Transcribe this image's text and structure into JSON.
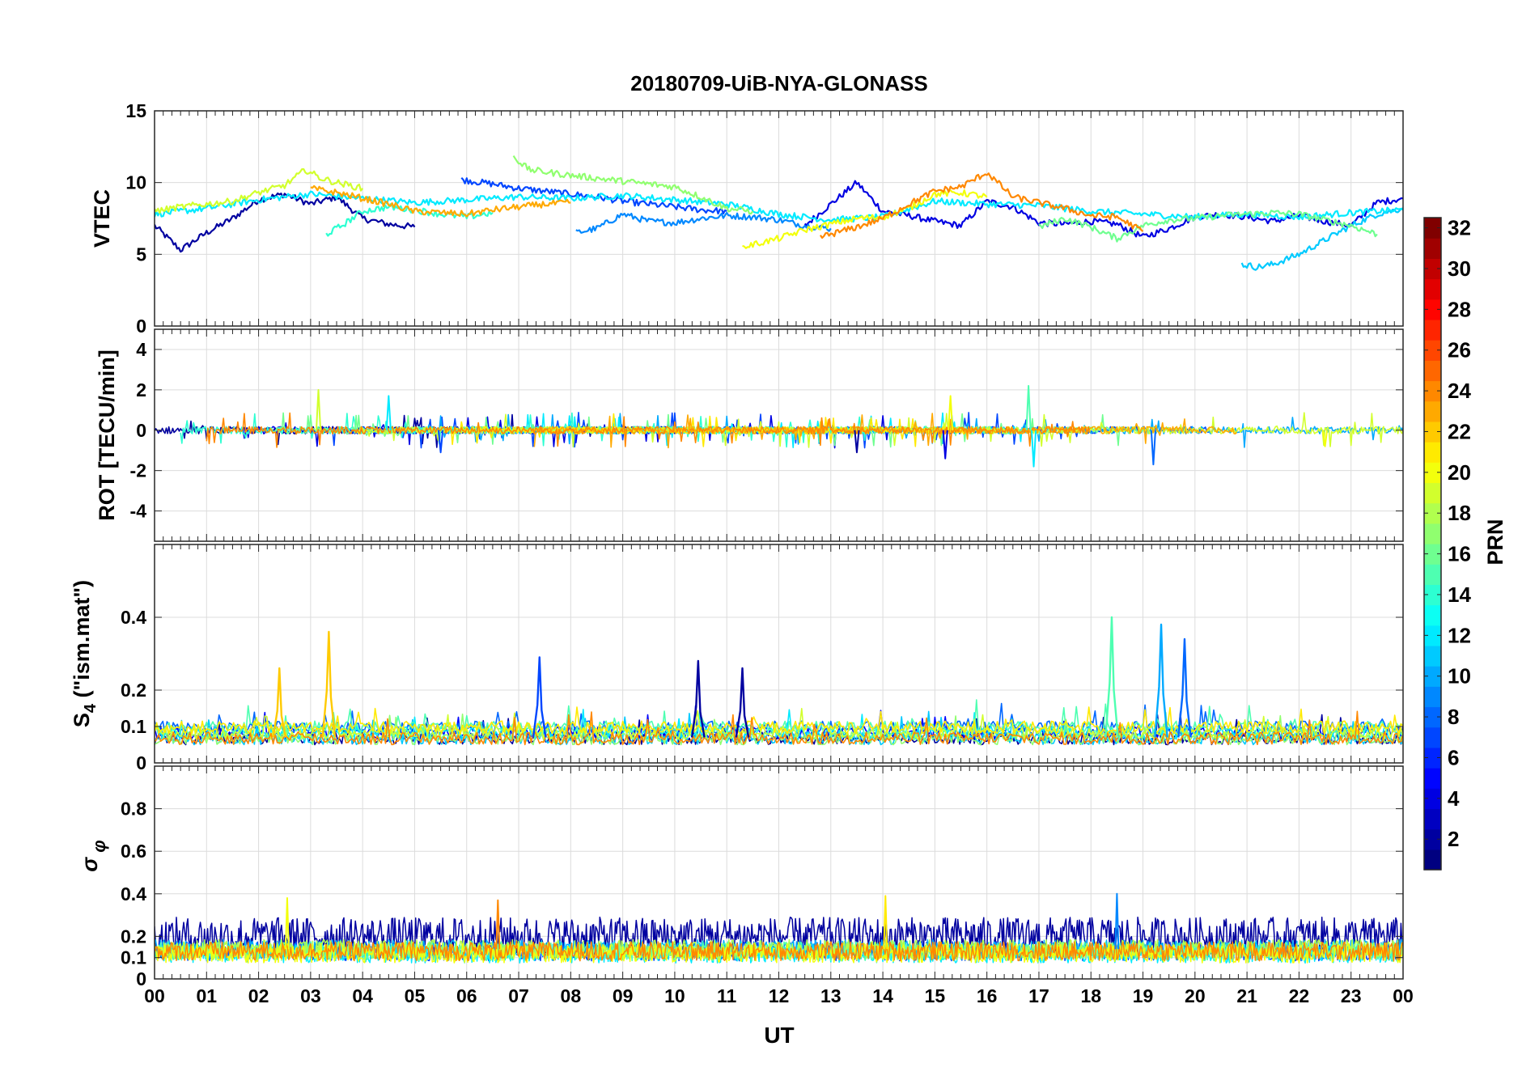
{
  "chart_data": {
    "type": "line",
    "title": "20180709-UiB-NYA-GLONASS",
    "xlabel": "UT",
    "x_tick_labels": [
      "00",
      "01",
      "02",
      "03",
      "04",
      "05",
      "06",
      "07",
      "08",
      "09",
      "10",
      "11",
      "12",
      "13",
      "14",
      "15",
      "16",
      "17",
      "18",
      "19",
      "20",
      "21",
      "22",
      "23",
      "00"
    ],
    "xlim": [
      0,
      24
    ],
    "grid": true,
    "colormap": "jet",
    "colorbar": {
      "label": "PRN",
      "range": [
        1,
        32
      ],
      "tick_labels": [
        "2",
        "4",
        "6",
        "8",
        "10",
        "12",
        "14",
        "16",
        "18",
        "20",
        "22",
        "24",
        "26",
        "28",
        "30",
        "32"
      ],
      "placement": "right"
    },
    "panels": [
      {
        "name": "vtec",
        "ylabel": "VTEC",
        "ylim": [
          0,
          15
        ],
        "y_tick_labels": [
          "0",
          "5",
          "10",
          "15"
        ],
        "series": [
          {
            "prn": 2,
            "x": [
              0.0,
              0.5,
              1.0,
              1.5,
              2.0,
              2.5,
              3.0,
              3.5,
              4.0,
              4.5,
              5.0
            ],
            "y": [
              7.0,
              5.3,
              6.5,
              7.5,
              8.8,
              9.2,
              8.5,
              9.0,
              7.5,
              7.1,
              6.9
            ]
          },
          {
            "prn": 4,
            "x": [
              12.5,
              13.0,
              13.5,
              14.0,
              14.5,
              15.0,
              15.5,
              16.0,
              16.5,
              17.0,
              17.5,
              18.0,
              18.5,
              19.0,
              19.5,
              20.0,
              20.5,
              21.0,
              21.5,
              22.0,
              22.5,
              23.0,
              23.5,
              24.0
            ],
            "y": [
              7.0,
              8.5,
              10.0,
              8.0,
              7.7,
              7.3,
              7.0,
              8.7,
              8.3,
              7.2,
              7.1,
              7.3,
              7.1,
              6.2,
              6.8,
              7.6,
              7.8,
              7.6,
              7.3,
              7.7,
              7.3,
              7.0,
              8.6,
              8.9
            ]
          },
          {
            "prn": 7,
            "x": [
              5.9,
              6.5,
              7.0,
              7.5,
              8.0,
              8.5,
              9.0,
              9.5,
              10.0,
              10.5,
              11.0
            ],
            "y": [
              10.2,
              9.9,
              9.6,
              9.4,
              9.2,
              9.0,
              8.7,
              8.5,
              8.3,
              8.1,
              8.0
            ]
          },
          {
            "prn": 9,
            "x": [
              8.1,
              8.5,
              9.0,
              9.5,
              10.0,
              10.5,
              11.0,
              11.5,
              12.0,
              12.5,
              13.0
            ],
            "y": [
              6.5,
              6.8,
              7.8,
              7.3,
              7.2,
              7.5,
              7.7,
              7.6,
              7.4,
              7.0,
              6.8
            ]
          },
          {
            "prn": 11,
            "x": [
              20.9,
              21.2,
              21.5,
              22.0,
              22.5,
              23.0,
              23.5,
              24.0
            ],
            "y": [
              4.3,
              4.1,
              4.3,
              5.0,
              6.0,
              7.0,
              7.8,
              8.2
            ]
          },
          {
            "prn": 12,
            "x": [
              0.0,
              1.0,
              2.0,
              3.0,
              4.0,
              5.0,
              6.0,
              7.0,
              8.0,
              9.0,
              10.0,
              11.0,
              12.0,
              13.0,
              14.0,
              15.0,
              16.0,
              17.0,
              18.0,
              19.0,
              20.0,
              21.0,
              22.0,
              23.0,
              24.0
            ],
            "y": [
              7.8,
              8.2,
              8.8,
              9.2,
              8.9,
              8.6,
              8.8,
              9.0,
              8.9,
              9.1,
              8.8,
              8.5,
              7.8,
              7.4,
              7.6,
              8.7,
              8.5,
              8.4,
              8.0,
              7.8,
              7.6,
              7.8,
              7.6,
              7.9,
              8.1
            ]
          },
          {
            "prn": 14,
            "x": [
              3.3,
              3.6,
              4.0,
              4.5,
              5.0,
              5.5,
              6.0,
              6.5
            ],
            "y": [
              6.4,
              7.0,
              8.0,
              8.3,
              8.1,
              7.8,
              7.6,
              7.9
            ]
          },
          {
            "prn": 16,
            "x": [
              17.0,
              17.5,
              18.0,
              18.5,
              19.0,
              19.5,
              20.0,
              20.5,
              21.0,
              21.5,
              22.0,
              22.5,
              23.0,
              23.5
            ],
            "y": [
              6.9,
              7.5,
              6.9,
              6.1,
              7.0,
              7.4,
              7.5,
              7.7,
              7.8,
              7.9,
              7.8,
              7.4,
              7.0,
              6.4
            ]
          },
          {
            "prn": 17,
            "x": [
              6.9,
              7.2,
              8.0,
              9.0,
              10.0,
              10.5,
              11.0,
              11.5
            ],
            "y": [
              11.8,
              10.9,
              10.5,
              10.1,
              9.7,
              9.0,
              8.2,
              8.0
            ]
          },
          {
            "prn": 19,
            "x": [
              0.0,
              0.5,
              1.0,
              1.5,
              2.0,
              2.5,
              2.9,
              3.2,
              3.5,
              4.0
            ],
            "y": [
              8.0,
              8.3,
              8.5,
              8.7,
              9.3,
              9.8,
              10.9,
              10.3,
              10.0,
              9.6
            ]
          },
          {
            "prn": 20,
            "x": [
              11.3,
              12.0,
              12.5,
              13.0,
              13.5,
              14.0,
              14.5,
              15.0,
              15.5,
              16.0
            ],
            "y": [
              5.5,
              6.1,
              6.7,
              7.1,
              7.5,
              7.6,
              8.2,
              9.2,
              9.3,
              9.0
            ]
          },
          {
            "prn": 23,
            "x": [
              3.0,
              3.5,
              4.0,
              4.5,
              5.0,
              5.5,
              6.0,
              6.5,
              7.0,
              7.5,
              8.0
            ],
            "y": [
              9.6,
              9.3,
              8.9,
              8.5,
              8.0,
              7.9,
              7.8,
              8.1,
              8.3,
              8.5,
              8.6
            ]
          },
          {
            "prn": 24,
            "x": [
              12.8,
              13.5,
              14.0,
              14.5,
              15.0,
              15.5,
              16.0,
              16.5,
              17.0,
              17.5,
              18.0,
              18.5,
              19.0
            ],
            "y": [
              6.2,
              6.9,
              7.5,
              8.5,
              9.4,
              9.7,
              10.7,
              9.0,
              8.6,
              8.2,
              7.7,
              7.6,
              6.6
            ]
          }
        ]
      },
      {
        "name": "rot",
        "ylabel": "ROT [TECU/min]",
        "ylim": [
          -5.5,
          5
        ],
        "y_tick_labels": [
          "-4",
          "-2",
          "0",
          "2",
          "4"
        ],
        "spikes": [
          {
            "x": 3.15,
            "y": 2.0,
            "prn": 19
          },
          {
            "x": 4.5,
            "y": 1.7,
            "prn": 12
          },
          {
            "x": 5.5,
            "y": -1.1,
            "prn": 7
          },
          {
            "x": 13.5,
            "y": -1.1,
            "prn": 2
          },
          {
            "x": 15.2,
            "y": -1.4,
            "prn": 4
          },
          {
            "x": 15.3,
            "y": 1.7,
            "prn": 20
          },
          {
            "x": 16.8,
            "y": 2.2,
            "prn": 15
          },
          {
            "x": 16.9,
            "y": -1.8,
            "prn": 12
          },
          {
            "x": 19.2,
            "y": -1.7,
            "prn": 8
          },
          {
            "x": 22.5,
            "y": -0.8,
            "prn": 20
          }
        ]
      },
      {
        "name": "s4",
        "ylabel": "S4 (\"ism.mat\")",
        "ylim": [
          0,
          0.6
        ],
        "y_tick_labels": [
          "0",
          "0.1",
          "0.2",
          "0.4"
        ],
        "peaks": [
          {
            "x": 2.4,
            "y": 0.26,
            "prn": 22
          },
          {
            "x": 3.35,
            "y": 0.36,
            "prn": 22
          },
          {
            "x": 7.4,
            "y": 0.29,
            "prn": 7
          },
          {
            "x": 10.45,
            "y": 0.28,
            "prn": 2
          },
          {
            "x": 11.3,
            "y": 0.26,
            "prn": 2
          },
          {
            "x": 18.4,
            "y": 0.4,
            "prn": 15
          },
          {
            "x": 19.35,
            "y": 0.38,
            "prn": 10
          },
          {
            "x": 19.8,
            "y": 0.34,
            "prn": 8
          }
        ]
      },
      {
        "name": "sigma_phi",
        "ylabel": "σφ",
        "ylim": [
          0,
          1
        ],
        "y_tick_labels": [
          "0",
          "0.1",
          "0.2",
          "0.4",
          "0.6",
          "0.8"
        ],
        "spikes": [
          {
            "x": 2.55,
            "y": 0.38,
            "prn": 20
          },
          {
            "x": 6.6,
            "y": 0.37,
            "prn": 24
          },
          {
            "x": 14.05,
            "y": 0.39,
            "prn": 21
          },
          {
            "x": 18.5,
            "y": 0.4,
            "prn": 9
          }
        ]
      }
    ]
  }
}
